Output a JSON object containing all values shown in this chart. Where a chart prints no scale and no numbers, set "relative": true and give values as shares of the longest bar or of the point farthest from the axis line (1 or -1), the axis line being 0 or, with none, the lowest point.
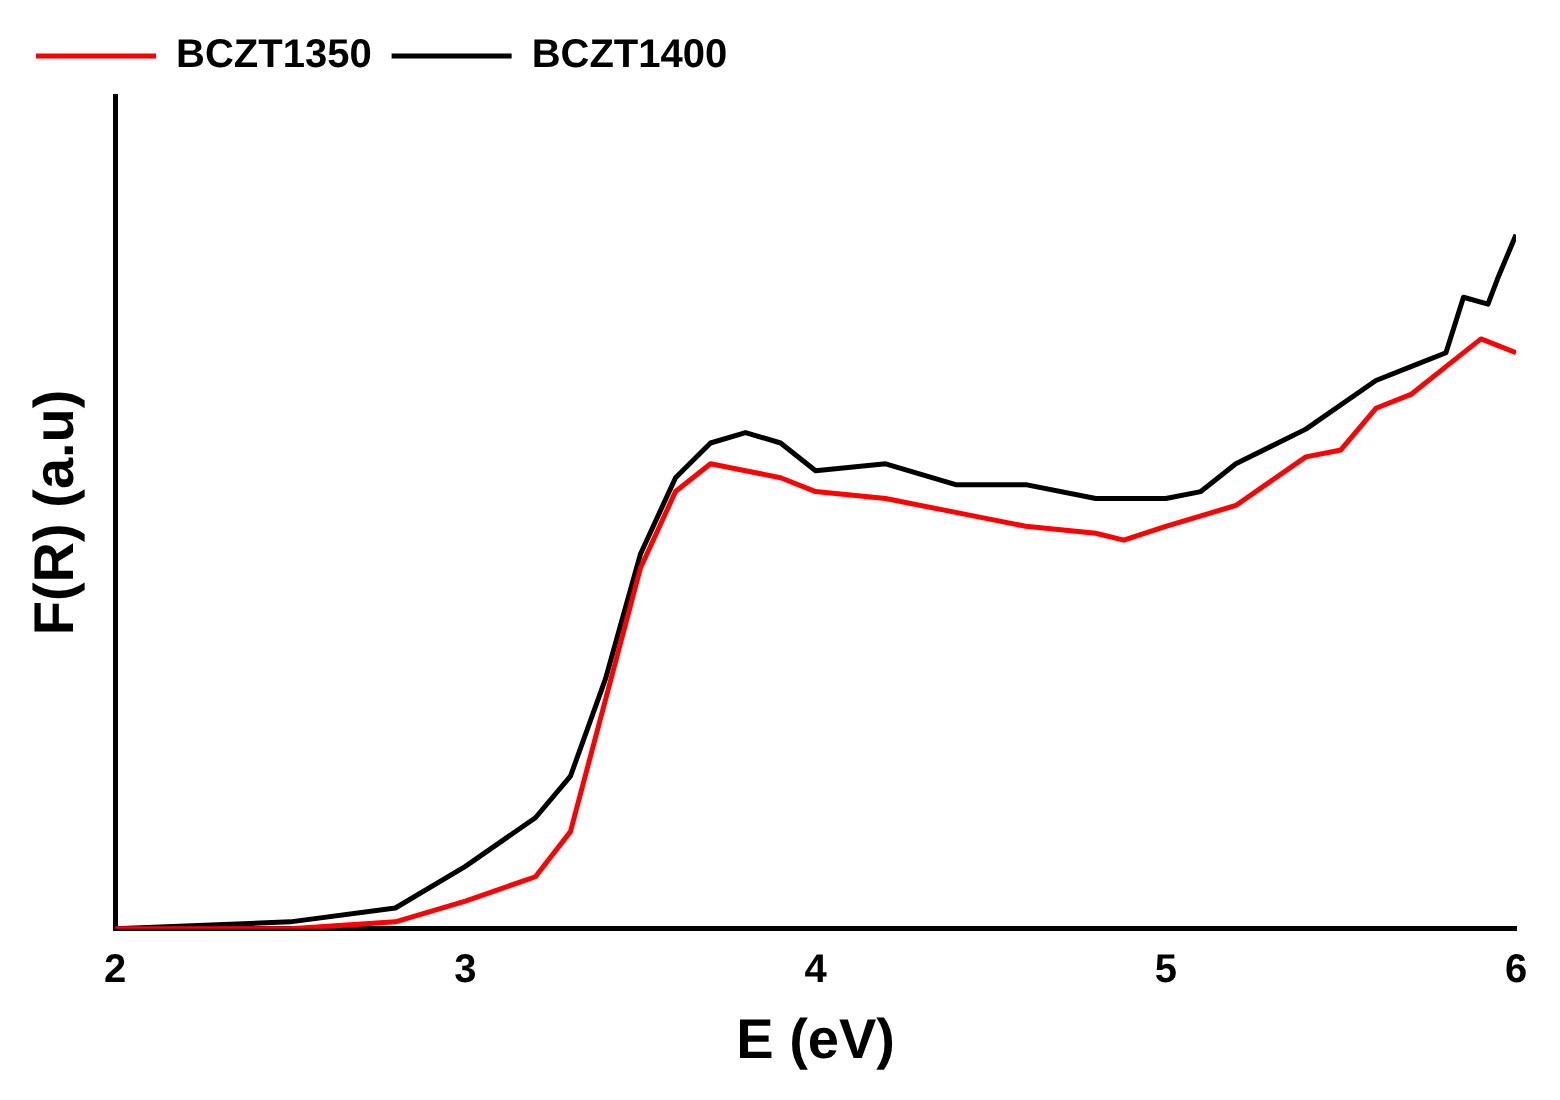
{
  "chart_data": {
    "type": "line",
    "xlabel": "E (eV)",
    "ylabel": "F(R) (a.u)",
    "relative": true,
    "xlim": [
      2,
      6
    ],
    "xticks": [
      2,
      3,
      4,
      5,
      6
    ],
    "tick_labels": "x",
    "grid": false,
    "legend": "top left",
    "marker": "none",
    "line_style": "solid",
    "series": [
      {
        "name": "BCZT1350",
        "color": "#ff0000",
        "x": [
          2,
          2.5,
          2.8,
          3,
          3.2,
          3.3,
          3.4,
          3.5,
          3.6,
          3.7,
          3.8,
          3.9,
          4,
          4.2,
          4.4,
          4.6,
          4.8,
          4.88,
          5,
          5.2,
          5.4,
          5.5,
          5.6,
          5.7,
          5.8,
          5.9,
          6
        ],
        "values": [
          0,
          0,
          0.01,
          0.04,
          0.075,
          0.14,
          0.33,
          0.52,
          0.63,
          0.67,
          0.66,
          0.65,
          0.63,
          0.62,
          0.6,
          0.58,
          0.57,
          0.56,
          0.58,
          0.61,
          0.68,
          0.69,
          0.75,
          0.77,
          0.81,
          0.85,
          0.83
        ]
      },
      {
        "name": "BCZT1400",
        "color": "#000000",
        "x": [
          2,
          2.5,
          2.8,
          3,
          3.2,
          3.3,
          3.4,
          3.5,
          3.6,
          3.7,
          3.8,
          3.9,
          4,
          4.2,
          4.4,
          4.6,
          4.8,
          5,
          5.1,
          5.2,
          5.4,
          5.6,
          5.7,
          5.8,
          5.85,
          5.92,
          5.95,
          6
        ],
        "values": [
          0,
          0.01,
          0.03,
          0.09,
          0.16,
          0.22,
          0.36,
          0.54,
          0.65,
          0.7,
          0.715,
          0.7,
          0.66,
          0.67,
          0.64,
          0.64,
          0.62,
          0.62,
          0.63,
          0.67,
          0.72,
          0.79,
          0.81,
          0.83,
          0.91,
          0.9,
          0.94,
          1
        ]
      }
    ]
  }
}
